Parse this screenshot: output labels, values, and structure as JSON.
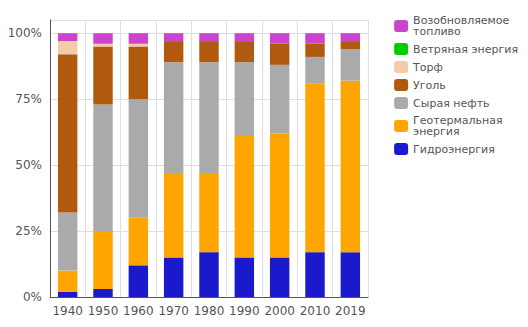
{
  "chart_data": {
    "type": "bar",
    "stacked": true,
    "categories": [
      "1940",
      "1950",
      "1960",
      "1970",
      "1980",
      "1990",
      "2000",
      "2010",
      "2019"
    ],
    "series": [
      {
        "name": "Гидроэнергия",
        "color": "#1a1acc",
        "values": [
          2,
          3,
          12,
          15,
          17,
          15,
          15,
          17,
          17
        ]
      },
      {
        "name": "Геотермальная\nэнергия",
        "color": "#FFA500",
        "values": [
          8,
          22,
          18,
          32,
          30,
          46,
          47,
          64,
          65
        ]
      },
      {
        "name": "Сырая нефть",
        "color": "#aaaaaa",
        "values": [
          22,
          48,
          45,
          42,
          42,
          28,
          26,
          10,
          12
        ]
      },
      {
        "name": "Уголь",
        "color": "#b05a10",
        "values": [
          60,
          22,
          20,
          8,
          8,
          8,
          8,
          5,
          3
        ]
      },
      {
        "name": "Торф",
        "color": "#f5cba7",
        "values": [
          5,
          1,
          1,
          0,
          0,
          0,
          0,
          0,
          0
        ]
      },
      {
        "name": "Ветряная энергия",
        "color": "#00cc00",
        "values": [
          0,
          0,
          0,
          0,
          0,
          0,
          0,
          0,
          0
        ]
      },
      {
        "name": "Возобновляемое\nтопливо",
        "color": "#cc44cc",
        "values": [
          3,
          4,
          4,
          3,
          3,
          3,
          4,
          4,
          3
        ]
      }
    ],
    "ylim": [
      0,
      105
    ],
    "yticks": [
      {
        "value": 0,
        "label": "0%"
      },
      {
        "value": 25,
        "label": "25%"
      },
      {
        "value": 50,
        "label": "50%"
      },
      {
        "value": 75,
        "label": "75%"
      },
      {
        "value": 100,
        "label": "100%"
      }
    ],
    "grid": true,
    "legend": "right"
  }
}
